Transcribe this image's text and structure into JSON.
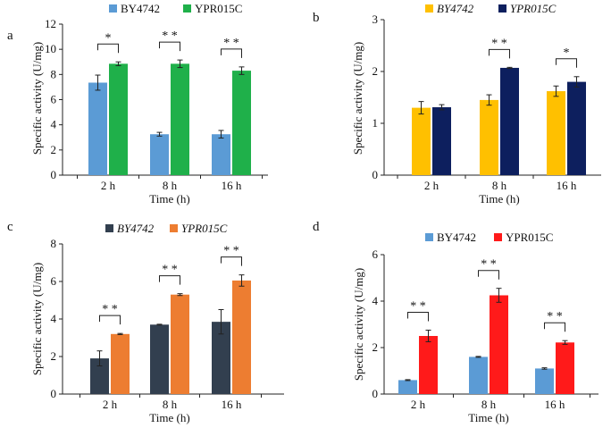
{
  "chart_data": [
    {
      "type": "bar",
      "panel_label": "a",
      "categories": [
        "2 h",
        "8 h",
        "16 h"
      ],
      "xlabel": "Time (h)",
      "ylabel": "Specific activity (U/mg)",
      "ylim": [
        0,
        12
      ],
      "yticks": [
        0,
        2,
        4,
        6,
        8,
        10,
        12
      ],
      "legend_italic": false,
      "series": [
        {
          "name": "BY4742",
          "color": "#5B9BD5",
          "values": [
            7.35,
            3.25,
            3.25
          ],
          "errors": [
            0.6,
            0.15,
            0.3
          ]
        },
        {
          "name": "YPR015C",
          "color": "#1FB04A",
          "values": [
            8.85,
            8.85,
            8.3
          ],
          "errors": [
            0.15,
            0.3,
            0.3
          ]
        }
      ],
      "significance": [
        "*",
        "* *",
        "* *"
      ]
    },
    {
      "type": "bar",
      "panel_label": "b",
      "categories": [
        "2 h",
        "8 h",
        "16 h"
      ],
      "xlabel": "Time (h)",
      "ylabel": "Specific activity (U/mg)",
      "ylim": [
        0,
        3
      ],
      "yticks": [
        0,
        1,
        2,
        3
      ],
      "legend_italic": true,
      "series": [
        {
          "name": "BY4742",
          "color": "#FFC000",
          "values": [
            1.3,
            1.45,
            1.62
          ],
          "errors": [
            0.12,
            0.1,
            0.1
          ]
        },
        {
          "name": "YPR015C",
          "color": "#0D1F5E",
          "values": [
            1.31,
            2.07,
            1.8
          ],
          "errors": [
            0.05,
            0.01,
            0.1
          ]
        }
      ],
      "significance": [
        "",
        "* *",
        "*"
      ]
    },
    {
      "type": "bar",
      "panel_label": "c",
      "categories": [
        "2 h",
        "8 h",
        "16 h"
      ],
      "xlabel": "Time (h)",
      "ylabel": "Specific activity (U/mg)",
      "ylim": [
        0,
        8
      ],
      "yticks": [
        0,
        2,
        4,
        6,
        8
      ],
      "legend_italic": true,
      "series": [
        {
          "name": "BY4742",
          "color": "#323F4F",
          "values": [
            1.9,
            3.7,
            3.85
          ],
          "errors": [
            0.4,
            0.02,
            0.65
          ]
        },
        {
          "name": "YPR015C",
          "color": "#ED7D31",
          "values": [
            3.2,
            5.3,
            6.05
          ],
          "errors": [
            0.03,
            0.05,
            0.3
          ]
        }
      ],
      "significance": [
        "* *",
        "*   *",
        "* *"
      ]
    },
    {
      "type": "bar",
      "panel_label": "d",
      "categories": [
        "2 h",
        "8 h",
        "16 h"
      ],
      "xlabel": "Time (h)",
      "ylabel": "Specific activity (U/mg)",
      "ylim": [
        0,
        6
      ],
      "yticks": [
        0,
        2,
        4,
        6
      ],
      "legend_italic": false,
      "series": [
        {
          "name": "BY4742",
          "color": "#5B9BD5",
          "values": [
            0.6,
            1.6,
            1.1
          ],
          "errors": [
            0.02,
            0.02,
            0.03
          ]
        },
        {
          "name": "YPR015C",
          "color": "#FF1A1A",
          "values": [
            2.5,
            4.25,
            2.22
          ],
          "errors": [
            0.25,
            0.3,
            0.08
          ]
        }
      ],
      "significance": [
        "* *",
        "* *",
        "* *"
      ]
    }
  ]
}
